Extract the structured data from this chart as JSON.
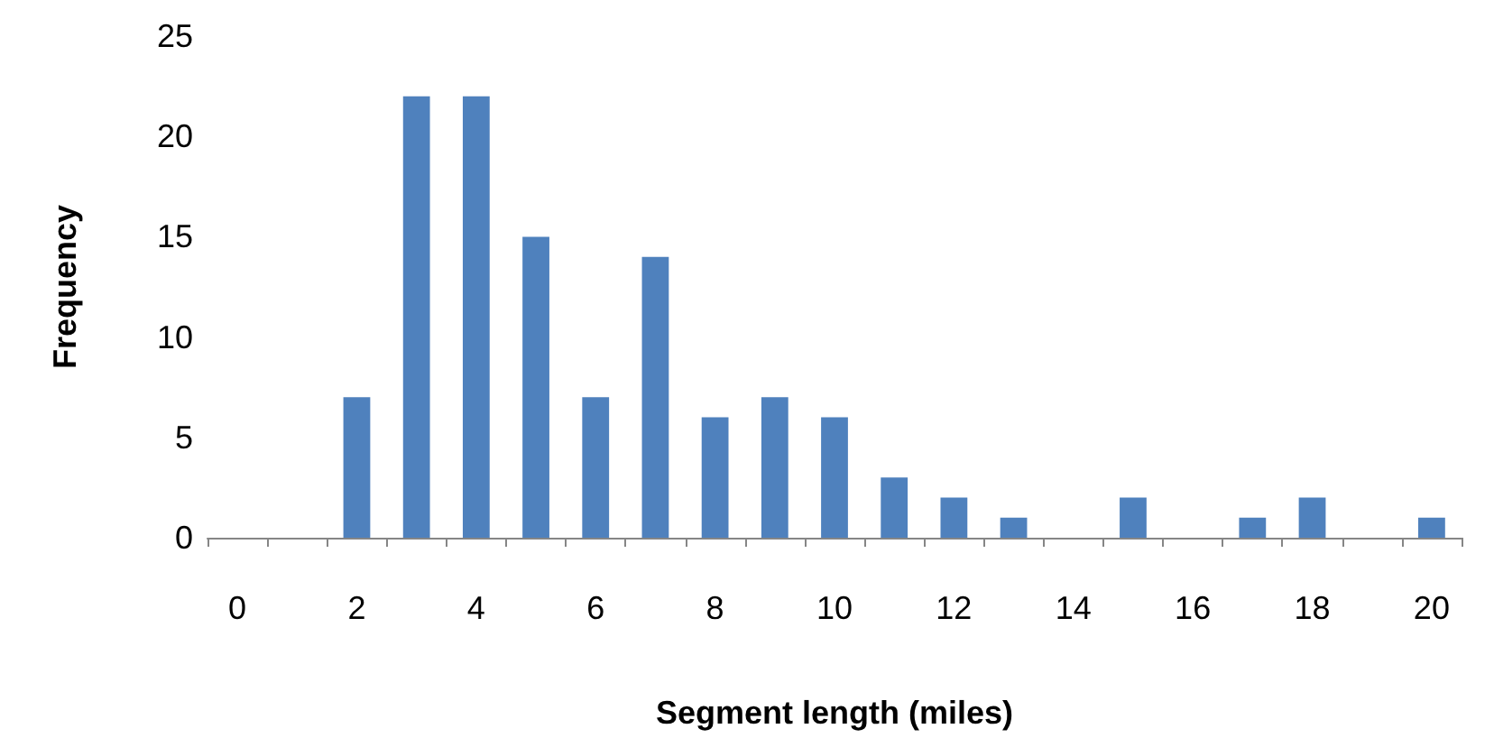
{
  "chart_data": {
    "type": "bar",
    "xlabel": "Segment length (miles)",
    "ylabel": "Frequency",
    "categories": [
      "0",
      null,
      "2",
      null,
      "4",
      null,
      "6",
      null,
      "8",
      null,
      "10",
      null,
      "12",
      null,
      "14",
      null,
      "16",
      null,
      "18",
      null,
      "20"
    ],
    "values": [
      0,
      0,
      7,
      22,
      22,
      15,
      7,
      14,
      6,
      7,
      6,
      3,
      2,
      1,
      0,
      2,
      0,
      1,
      2,
      0,
      1
    ],
    "color": "#4f81bd",
    "ylim": [
      0,
      25
    ],
    "yticks": [
      0,
      5,
      10,
      15,
      20,
      25
    ],
    "grid": false
  }
}
